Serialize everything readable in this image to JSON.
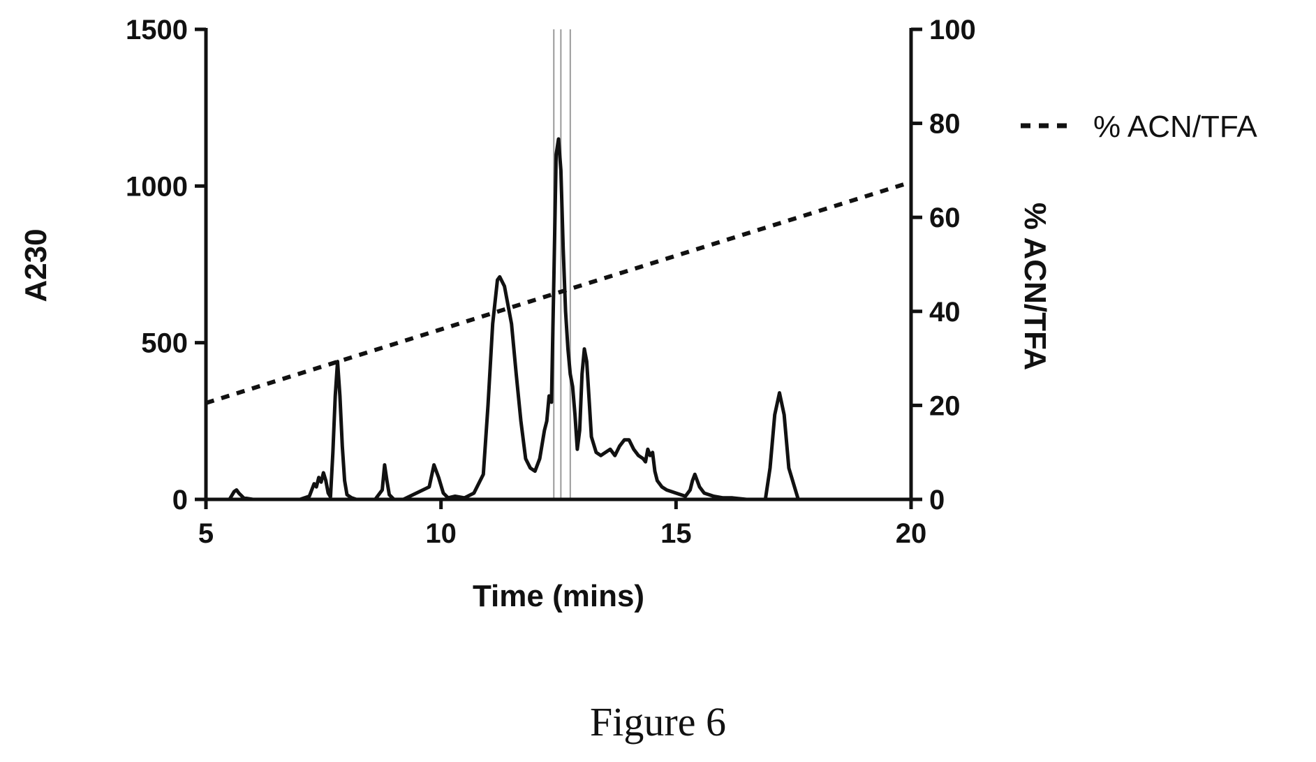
{
  "caption": "Figure 6",
  "chart_data": {
    "type": "line",
    "xlabel": "Time (mins)",
    "ylabel": "A230",
    "y2label": "% ACN/TFA",
    "xlim": [
      5,
      20
    ],
    "ylim": [
      0,
      1500
    ],
    "y2lim": [
      0,
      100
    ],
    "xticks": [
      5,
      10,
      15,
      20
    ],
    "yticks": [
      0,
      500,
      1000,
      1500
    ],
    "y2ticks": [
      0,
      20,
      40,
      60,
      80,
      100
    ],
    "grid": false,
    "legend_position": "top-right",
    "fraction_lines_x": [
      12.4,
      12.55,
      12.75
    ],
    "series": [
      {
        "axis": "left",
        "style": "solid",
        "x": [
          5.0,
          5.5,
          5.6,
          5.65,
          5.7,
          5.8,
          6.0,
          7.0,
          7.2,
          7.3,
          7.35,
          7.4,
          7.45,
          7.5,
          7.55,
          7.6,
          7.65,
          7.7,
          7.75,
          7.8,
          7.85,
          7.9,
          7.95,
          8.0,
          8.1,
          8.2,
          8.6,
          8.75,
          8.8,
          8.85,
          8.9,
          9.0,
          9.2,
          9.75,
          9.85,
          9.95,
          10.05,
          10.15,
          10.3,
          10.5,
          10.7,
          10.9,
          11.0,
          11.1,
          11.2,
          11.25,
          11.35,
          11.5,
          11.6,
          11.7,
          11.8,
          11.9,
          12.0,
          12.1,
          12.2,
          12.25,
          12.3,
          12.35,
          12.4,
          12.45,
          12.5,
          12.55,
          12.6,
          12.65,
          12.7,
          12.75,
          12.8,
          12.85,
          12.9,
          12.95,
          13.0,
          13.05,
          13.1,
          13.15,
          13.2,
          13.3,
          13.4,
          13.5,
          13.6,
          13.7,
          13.8,
          13.9,
          14.0,
          14.1,
          14.2,
          14.3,
          14.35,
          14.4,
          14.45,
          14.5,
          14.55,
          14.6,
          14.7,
          14.8,
          15.0,
          15.2,
          15.3,
          15.35,
          15.4,
          15.5,
          15.6,
          15.8,
          16.0,
          16.2,
          16.5,
          16.9,
          17.0,
          17.1,
          17.2,
          17.3,
          17.4,
          17.6,
          20.0
        ],
        "y": [
          0,
          0,
          25,
          30,
          20,
          5,
          0,
          0,
          10,
          50,
          40,
          70,
          55,
          85,
          60,
          20,
          8,
          150,
          330,
          440,
          330,
          170,
          60,
          15,
          5,
          0,
          0,
          30,
          110,
          60,
          15,
          0,
          0,
          40,
          110,
          70,
          20,
          5,
          10,
          5,
          20,
          80,
          300,
          560,
          700,
          710,
          680,
          560,
          400,
          250,
          130,
          100,
          90,
          130,
          220,
          250,
          330,
          310,
          700,
          1100,
          1150,
          1050,
          800,
          600,
          480,
          400,
          360,
          270,
          160,
          220,
          400,
          480,
          440,
          320,
          200,
          150,
          140,
          150,
          160,
          140,
          170,
          190,
          190,
          160,
          140,
          130,
          120,
          160,
          140,
          150,
          90,
          60,
          40,
          30,
          20,
          10,
          30,
          60,
          80,
          40,
          20,
          10,
          5,
          5,
          0,
          0,
          100,
          270,
          340,
          270,
          100,
          0,
          0
        ]
      },
      {
        "name": "% ACN/TFA",
        "axis": "right",
        "style": "dashed",
        "x": [
          5.0,
          20.0
        ],
        "y": [
          20.5,
          67.5
        ]
      }
    ]
  }
}
